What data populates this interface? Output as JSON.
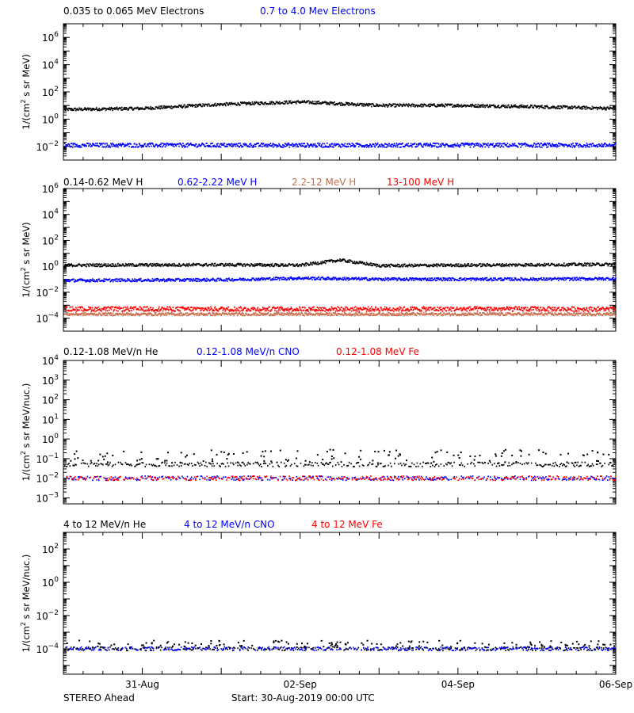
{
  "footer": {
    "left": "STEREO Ahead",
    "center": "Start: 30-Aug-2019 00:00 UTC"
  },
  "x_ticks": [
    "31-Aug",
    "02-Sep",
    "04-Sep",
    "06-Sep"
  ],
  "colors": {
    "black": "#000000",
    "blue": "#0000ff",
    "salmon": "#c86e4b",
    "red": "#ff0000"
  },
  "chart_data": [
    {
      "type": "scatter",
      "scale": "log",
      "ylabel": "1/(cm^2 s sr MeV)",
      "ylim": [
        0.001,
        10000000
      ],
      "y_ticks": [
        {
          "exp": -2
        },
        {
          "exp": 0
        },
        {
          "exp": 2
        },
        {
          "exp": 4
        },
        {
          "exp": 6
        }
      ],
      "x_start": "2019-08-30",
      "x_end": "2019-09-06",
      "series": [
        {
          "name": "0.035 to 0.065 MeV Electrons",
          "color": "#000000",
          "values": [
            [
              "2019-08-30",
              5
            ],
            [
              "2019-08-31",
              6
            ],
            [
              "2019-09-01",
              12
            ],
            [
              "2019-09-02",
              18
            ],
            [
              "2019-09-03",
              10
            ],
            [
              "2019-09-04",
              10
            ],
            [
              "2019-09-05",
              8
            ],
            [
              "2019-09-06",
              6
            ]
          ]
        },
        {
          "name": "0.7 to 4.0 Mev Electrons",
          "color": "#0000ff",
          "values": [
            [
              "2019-08-30",
              0.012
            ],
            [
              "2019-09-02",
              0.012
            ],
            [
              "2019-09-04",
              0.012
            ],
            [
              "2019-09-06",
              0.012
            ]
          ]
        }
      ]
    },
    {
      "type": "scatter",
      "scale": "log",
      "ylabel": "1/(cm^2 s sr MeV)",
      "ylim": [
        1e-05,
        1000000
      ],
      "y_ticks": [
        {
          "exp": -4
        },
        {
          "exp": -2
        },
        {
          "exp": 0
        },
        {
          "exp": 2
        },
        {
          "exp": 4
        },
        {
          "exp": 6
        }
      ],
      "x_start": "2019-08-30",
      "x_end": "2019-09-06",
      "series": [
        {
          "name": "0.14-0.62 MeV H",
          "color": "#000000",
          "values": [
            [
              "2019-08-30",
              1.2
            ],
            [
              "2019-09-01",
              1.3
            ],
            [
              "2019-09-02",
              1.2
            ],
            [
              "2019-09-02T12:00",
              3
            ],
            [
              "2019-09-03",
              1.1
            ],
            [
              "2019-09-05",
              1.3
            ],
            [
              "2019-09-06",
              1.4
            ]
          ]
        },
        {
          "name": "0.62-2.22 MeV H",
          "color": "#0000ff",
          "values": [
            [
              "2019-08-30",
              0.08
            ],
            [
              "2019-09-01",
              0.09
            ],
            [
              "2019-09-02",
              0.12
            ],
            [
              "2019-09-03",
              0.1
            ],
            [
              "2019-09-05",
              0.1
            ],
            [
              "2019-09-06",
              0.11
            ]
          ]
        },
        {
          "name": "2.2-12 MeV H",
          "color": "#c86e4b",
          "values": [
            [
              "2019-08-30",
              0.0002
            ],
            [
              "2019-09-02",
              0.0002
            ],
            [
              "2019-09-04",
              0.0002
            ],
            [
              "2019-09-06",
              0.0002
            ]
          ]
        },
        {
          "name": "13-100 MeV H",
          "color": "#ff0000",
          "values": [
            [
              "2019-08-30",
              0.0005
            ],
            [
              "2019-09-02",
              0.0005
            ],
            [
              "2019-09-04",
              0.0005
            ],
            [
              "2019-09-06",
              0.0005
            ]
          ]
        }
      ]
    },
    {
      "type": "scatter",
      "scale": "log",
      "ylabel": "1/(cm^2 s sr MeV/nuc.)",
      "ylim": [
        0.0005,
        10000
      ],
      "y_ticks": [
        {
          "exp": -3
        },
        {
          "exp": -2
        },
        {
          "exp": -1
        },
        {
          "exp": 0
        },
        {
          "exp": 1
        },
        {
          "exp": 2
        },
        {
          "exp": 3
        },
        {
          "exp": 4
        }
      ],
      "x_start": "2019-08-30",
      "x_end": "2019-09-06",
      "series": [
        {
          "name": "0.12-1.08 MeV/n He",
          "color": "#000000",
          "values": [
            [
              "2019-08-30",
              0.05
            ],
            [
              "2019-09-02",
              0.05
            ],
            [
              "2019-09-04",
              0.05
            ],
            [
              "2019-09-06",
              0.05
            ]
          ]
        },
        {
          "name": "0.12-1.08 MeV/n CNO",
          "color": "#0000ff",
          "values": [
            [
              "2019-08-30",
              0.01
            ],
            [
              "2019-09-03",
              0.01
            ],
            [
              "2019-09-06",
              0.01
            ]
          ]
        },
        {
          "name": "0.12-1.08 MeV Fe",
          "color": "#ff0000",
          "values": [
            [
              "2019-08-30",
              0.01
            ],
            [
              "2019-09-03",
              0.01
            ],
            [
              "2019-09-06",
              0.01
            ]
          ]
        }
      ]
    },
    {
      "type": "scatter",
      "scale": "log",
      "ylabel": "1/(cm^2 s sr MeV/nuc.)",
      "ylim": [
        3e-06,
        1000
      ],
      "y_ticks": [
        {
          "exp": -4
        },
        {
          "exp": -2
        },
        {
          "exp": 0
        },
        {
          "exp": 2
        }
      ],
      "x_start": "2019-08-30",
      "x_end": "2019-09-06",
      "series": [
        {
          "name": "4 to 12 MeV/n He",
          "color": "#000000",
          "values": [
            [
              "2019-08-30",
              0.0001
            ],
            [
              "2019-09-03",
              0.0001
            ],
            [
              "2019-09-06",
              0.0001
            ]
          ]
        },
        {
          "name": "4 to 12 MeV/n CNO",
          "color": "#0000ff",
          "values": [
            [
              "2019-08-30",
              0.0001
            ],
            [
              "2019-09-03",
              0.0001
            ],
            [
              "2019-09-06",
              0.0001
            ]
          ]
        },
        {
          "name": "4 to 12 MeV Fe",
          "color": "#ff0000",
          "values": []
        }
      ]
    }
  ]
}
